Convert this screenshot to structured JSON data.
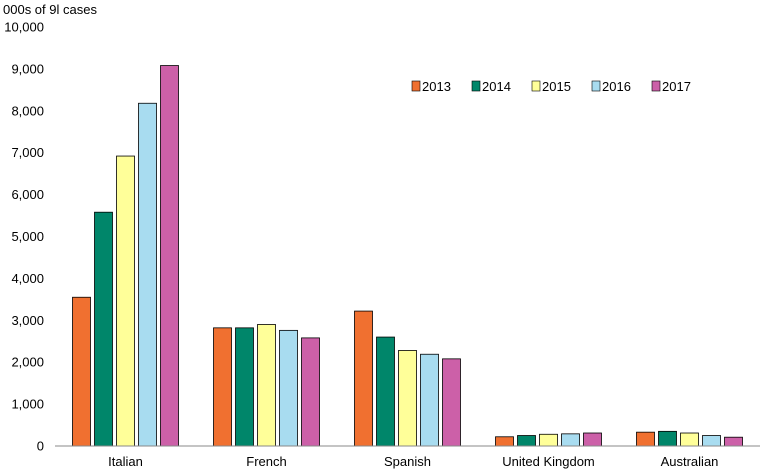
{
  "chart_data": {
    "type": "bar",
    "title": "",
    "ylabel": "000s of 9l cases",
    "xlabel": "",
    "ylim": [
      0,
      10000
    ],
    "yticks": [
      0,
      1000,
      2000,
      3000,
      4000,
      5000,
      6000,
      7000,
      8000,
      9000,
      10000
    ],
    "ytick_labels": [
      "0",
      "1,000",
      "2,000",
      "3,000",
      "4,000",
      "5,000",
      "6,000",
      "7,000",
      "8,000",
      "9,000",
      "10,000"
    ],
    "grid": false,
    "legend_position": "top-right",
    "categories": [
      "Italian",
      "French",
      "Spanish",
      "United Kingdom",
      "Australian"
    ],
    "series": [
      {
        "name": "2013",
        "color": "#f07030",
        "values": [
          3550,
          2820,
          3220,
          220,
          330
        ]
      },
      {
        "name": "2014",
        "color": "#00866a",
        "values": [
          5580,
          2820,
          2600,
          250,
          350
        ]
      },
      {
        "name": "2015",
        "color": "#ffff99",
        "values": [
          6920,
          2900,
          2280,
          280,
          310
        ]
      },
      {
        "name": "2016",
        "color": "#a8dcf0",
        "values": [
          8180,
          2760,
          2190,
          290,
          250
        ]
      },
      {
        "name": "2017",
        "color": "#cc60a8",
        "values": [
          9080,
          2580,
          2080,
          310,
          210
        ]
      }
    ]
  }
}
